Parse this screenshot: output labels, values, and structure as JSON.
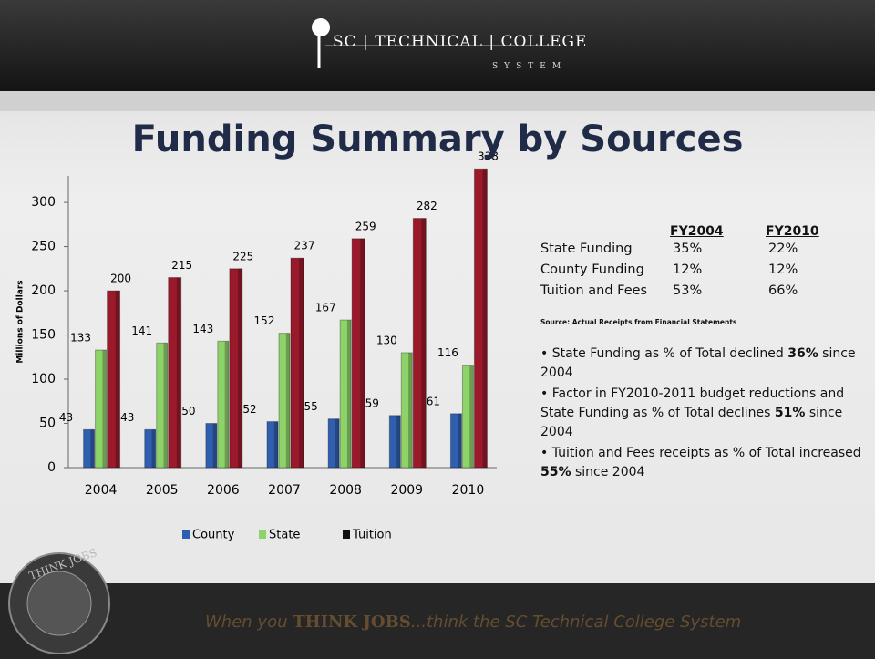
{
  "header": {
    "logo": [
      "SC",
      "TECHNICAL",
      "COLLEGE"
    ],
    "sub": "SYSTEM"
  },
  "title": "Funding Summary by Sources",
  "chart_data": {
    "type": "bar",
    "ylabel": "Millions of Dollars",
    "categories": [
      "2004",
      "2005",
      "2006",
      "2007",
      "2008",
      "2009",
      "2010"
    ],
    "series": [
      {
        "name": "County",
        "color": "#2f5fae",
        "values": [
          43,
          43,
          50,
          52,
          55,
          59,
          61
        ]
      },
      {
        "name": "State",
        "color": "#8ed36a",
        "values": [
          133,
          141,
          143,
          152,
          167,
          130,
          116
        ]
      },
      {
        "name": "Tuition",
        "color": "#9a1a2b",
        "values": [
          200,
          215,
          225,
          237,
          259,
          282,
          338
        ]
      }
    ],
    "ylim": [
      0,
      330
    ],
    "yticks": [
      0,
      50,
      100,
      150,
      200,
      250,
      300
    ],
    "grid": false,
    "legend": "bottom"
  },
  "table": {
    "header": [
      "FY2004",
      "FY2010"
    ],
    "rows": [
      [
        "State Funding",
        "35%",
        "22%"
      ],
      [
        "County Funding",
        "12%",
        "12%"
      ],
      [
        "Tuition and Fees",
        "53%",
        "66%"
      ]
    ]
  },
  "source": "Source:  Actual Receipts from Financial Statements",
  "bullets": [
    [
      "State Funding as % of Total declined ",
      "36%",
      " since 2004"
    ],
    [
      "Factor in FY2010-2011 budget reductions and State Funding as % of Total declines ",
      "51%",
      " since 2004"
    ],
    [
      "Tuition and Fees receipts as % of Total increased ",
      "55%",
      " since 2004"
    ]
  ],
  "footer": {
    "badge": "THINK JOBS",
    "pre": "When you ",
    "brand": "THINK JOBS",
    "post": "...think the SC Technical College System"
  }
}
